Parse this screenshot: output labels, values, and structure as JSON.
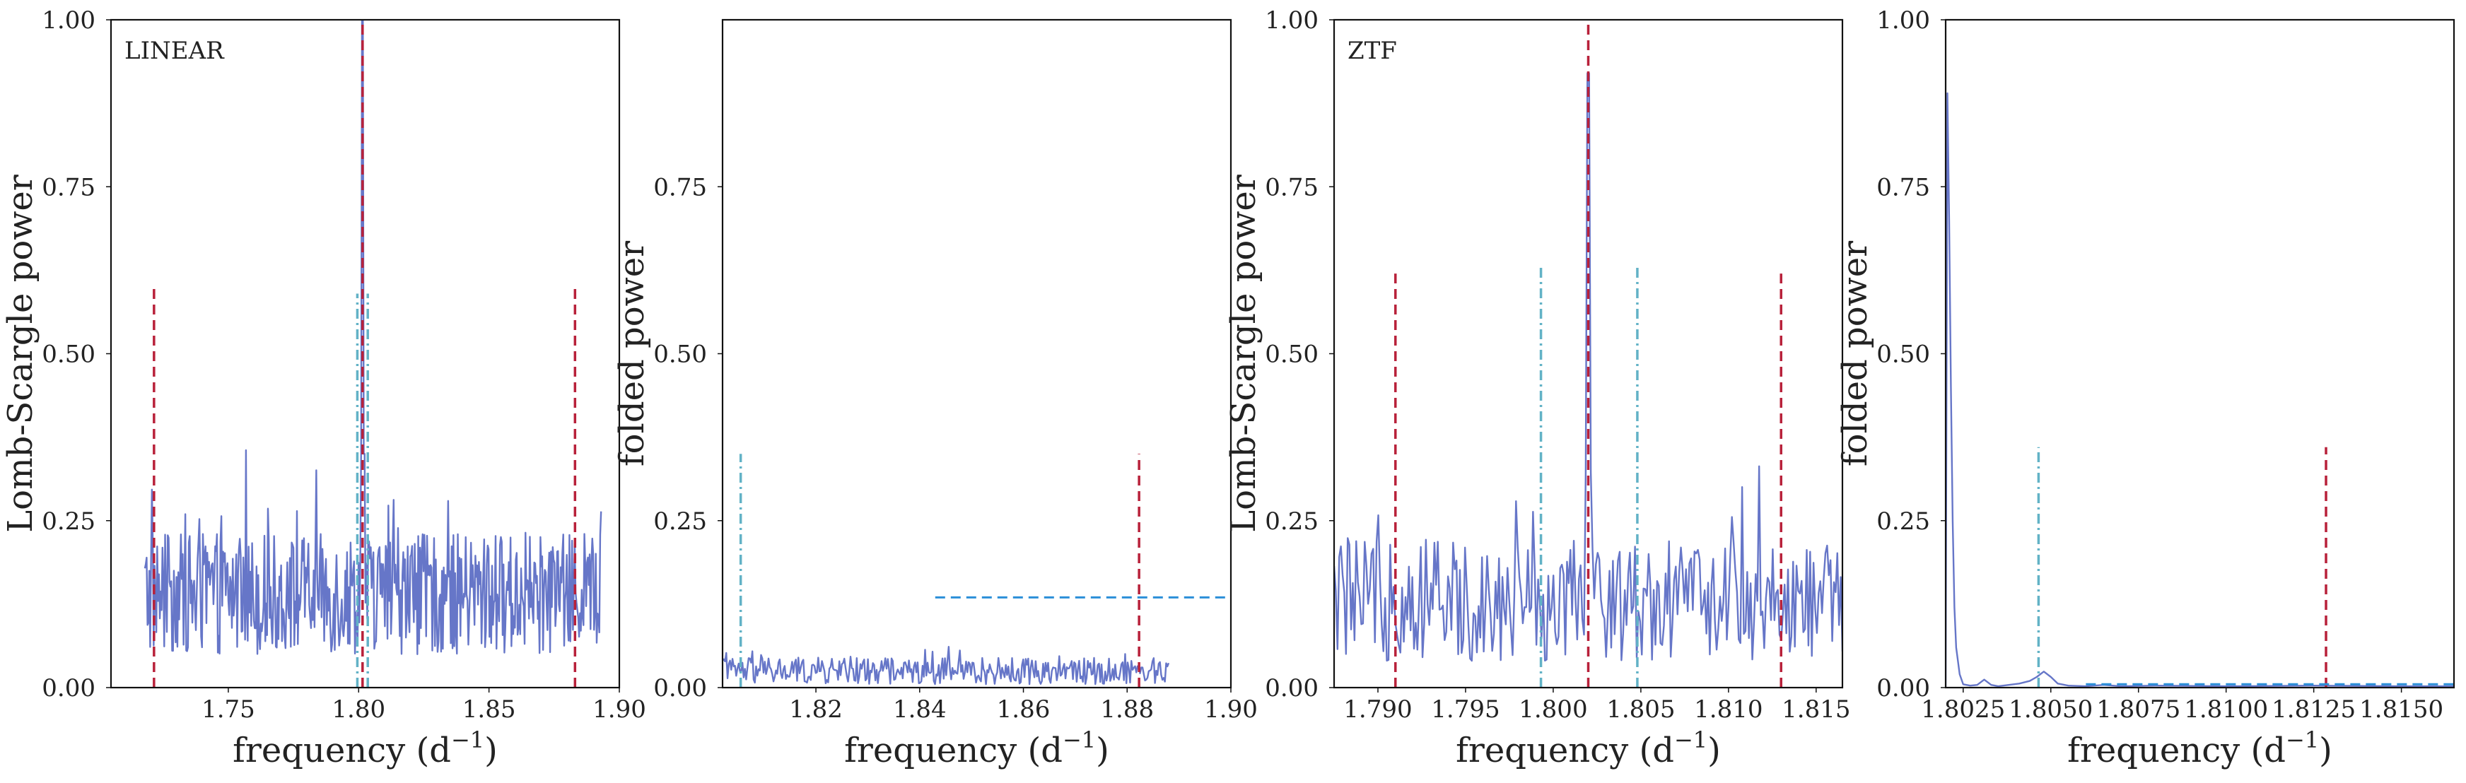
{
  "colors": {
    "signal": "#6676c8",
    "peak": "#b8213a",
    "alias": "#62b2c6",
    "threshold": "#2b8fd8",
    "axis": "#111111"
  },
  "chart_data": [
    {
      "type": "line",
      "annotation": "LINEAR",
      "xlabel": "frequency (d$^{-1}$)",
      "xlabel_main": "frequency (d",
      "xlabel_sup": "−1",
      "xlabel_close": ")",
      "ylabel": "Lomb-Scargle power",
      "xlim": [
        1.705,
        1.9
      ],
      "ylim": [
        0,
        1
      ],
      "xticks": [
        1.75,
        1.8,
        1.85,
        1.9
      ],
      "xtick_labels": [
        "1.75",
        "1.80",
        "1.85",
        "1.90"
      ],
      "yticks": [
        0,
        0.25,
        0.5,
        0.75,
        1.0
      ],
      "ytick_labels": [
        "0.00",
        "0.25",
        "0.50",
        "0.75",
        "1.00"
      ],
      "grid": false,
      "series": [
        {
          "style": "solid",
          "color": "#6676c8",
          "x_range": [
            1.718,
            1.893
          ],
          "n_points": 520,
          "baseline": 0.14,
          "spread": 0.09,
          "max_power": 1.0,
          "peak_at": 1.8015
        }
      ],
      "vlines": [
        {
          "x": 1.7215,
          "ymax": 0.6,
          "style": "dashed",
          "color": "#b8213a"
        },
        {
          "x": 1.8015,
          "ymax": 1.0,
          "style": "dashed",
          "color": "#b8213a"
        },
        {
          "x": 1.883,
          "ymax": 0.6,
          "style": "dashed",
          "color": "#b8213a"
        },
        {
          "x": 1.7995,
          "ymax": 0.59,
          "style": "dashdot",
          "color": "#62b2c6"
        },
        {
          "x": 1.8035,
          "ymax": 0.59,
          "style": "dashdot",
          "color": "#62b2c6"
        }
      ],
      "hlines": []
    },
    {
      "type": "line",
      "annotation": "",
      "xlabel": "frequency (d$^{-1}$)",
      "xlabel_main": "frequency (d",
      "xlabel_sup": "−1",
      "xlabel_close": ")",
      "ylabel": "folded power",
      "xlim": [
        1.802,
        1.9
      ],
      "ylim": [
        0,
        1
      ],
      "xticks": [
        1.82,
        1.84,
        1.86,
        1.88,
        1.9
      ],
      "xtick_labels": [
        "1.82",
        "1.84",
        "1.86",
        "1.88",
        "1.90"
      ],
      "yticks": [
        0,
        0.25,
        0.5,
        0.75
      ],
      "ytick_labels": [
        "0.00",
        "0.25",
        "0.50",
        "0.75"
      ],
      "grid": false,
      "series": [
        {
          "style": "solid",
          "color": "#6676c8",
          "x_range": [
            1.802,
            1.888
          ],
          "n_points": 360,
          "baseline": 0.025,
          "spread": 0.02,
          "max_power": 0.065
        }
      ],
      "vlines": [
        {
          "x": 1.8055,
          "ymax": 0.35,
          "style": "dashdot",
          "color": "#62b2c6"
        },
        {
          "x": 1.8823,
          "ymax": 0.35,
          "style": "dashed",
          "color": "#b8213a"
        }
      ],
      "hlines": [
        {
          "y": 0.135,
          "xmin": 1.843,
          "xmax": 1.9,
          "style": "dashed",
          "color": "#2b8fd8"
        }
      ]
    },
    {
      "type": "line",
      "annotation": "ZTF",
      "xlabel": "frequency (d$^{-1}$)",
      "xlabel_main": "frequency (d",
      "xlabel_sup": "−1",
      "xlabel_close": ")",
      "ylabel": "Lomb-Scargle power",
      "xlim": [
        1.7875,
        1.8165
      ],
      "ylim": [
        0,
        1
      ],
      "xticks": [
        1.79,
        1.795,
        1.8,
        1.805,
        1.81,
        1.815
      ],
      "xtick_labels": [
        "1.790",
        "1.795",
        "1.800",
        "1.805",
        "1.810",
        "1.815"
      ],
      "yticks": [
        0,
        0.25,
        0.5,
        0.75,
        1.0
      ],
      "ytick_labels": [
        "0.00",
        "0.25",
        "0.50",
        "0.75",
        "1.00"
      ],
      "grid": false,
      "series": [
        {
          "style": "solid",
          "color": "#6676c8",
          "x_range": [
            1.7875,
            1.8165
          ],
          "n_points": 300,
          "baseline": 0.13,
          "spread": 0.09,
          "max_power": 0.92,
          "peak_at": 1.802
        }
      ],
      "vlines": [
        {
          "x": 1.791,
          "ymax": 0.62,
          "style": "dashed",
          "color": "#b8213a"
        },
        {
          "x": 1.802,
          "ymax": 1.0,
          "style": "dashed",
          "color": "#b8213a"
        },
        {
          "x": 1.813,
          "ymax": 0.62,
          "style": "dashed",
          "color": "#b8213a"
        },
        {
          "x": 1.7993,
          "ymax": 0.63,
          "style": "dashdot",
          "color": "#62b2c6"
        },
        {
          "x": 1.8048,
          "ymax": 0.63,
          "style": "dashdot",
          "color": "#62b2c6"
        }
      ],
      "hlines": []
    },
    {
      "type": "line",
      "annotation": "",
      "xlabel": "frequency (d$^{-1}$)",
      "xlabel_main": "frequency (d",
      "xlabel_sup": "−1",
      "xlabel_close": ")",
      "ylabel": "folded power",
      "xlim": [
        1.802,
        1.8165
      ],
      "ylim": [
        0,
        1
      ],
      "xticks": [
        1.8025,
        1.805,
        1.8075,
        1.81,
        1.8125,
        1.815
      ],
      "xtick_labels": [
        "1.8025",
        "1.8050",
        "1.8075",
        "1.8100",
        "1.8125",
        "1.8150"
      ],
      "yticks": [
        0,
        0.25,
        0.5,
        0.75,
        1.0
      ],
      "ytick_labels": [
        "0.00",
        "0.25",
        "0.50",
        "0.75",
        "1.00"
      ],
      "grid": false,
      "series": [
        {
          "style": "solid",
          "color": "#6676c8",
          "x": [
            1.802,
            1.80205,
            1.8021,
            1.80215,
            1.8022,
            1.80225,
            1.8023,
            1.8024,
            1.8025,
            1.8027,
            1.8029,
            1.8031,
            1.8033,
            1.8035,
            1.8038,
            1.8041,
            1.8044,
            1.8046,
            1.8048,
            1.805,
            1.8052,
            1.8055,
            1.806,
            1.8065,
            1.807,
            1.808,
            1.81,
            1.8125,
            1.815,
            1.8165
          ],
          "y": [
            0.0,
            0.89,
            0.7,
            0.45,
            0.25,
            0.12,
            0.06,
            0.02,
            0.005,
            0.003,
            0.004,
            0.012,
            0.004,
            0.002,
            0.004,
            0.006,
            0.01,
            0.016,
            0.024,
            0.016,
            0.006,
            0.003,
            0.002,
            0.004,
            0.002,
            0.003,
            0.002,
            0.003,
            0.002,
            0.002
          ]
        }
      ],
      "vlines": [
        {
          "x": 1.80465,
          "ymax": 0.36,
          "style": "dashdot",
          "color": "#62b2c6"
        },
        {
          "x": 1.81285,
          "ymax": 0.36,
          "style": "dashed",
          "color": "#b8213a"
        }
      ],
      "hlines": [
        {
          "y": 0.005,
          "xmin": 1.806,
          "xmax": 1.8165,
          "style": "dashed",
          "color": "#2b8fd8"
        }
      ]
    }
  ]
}
